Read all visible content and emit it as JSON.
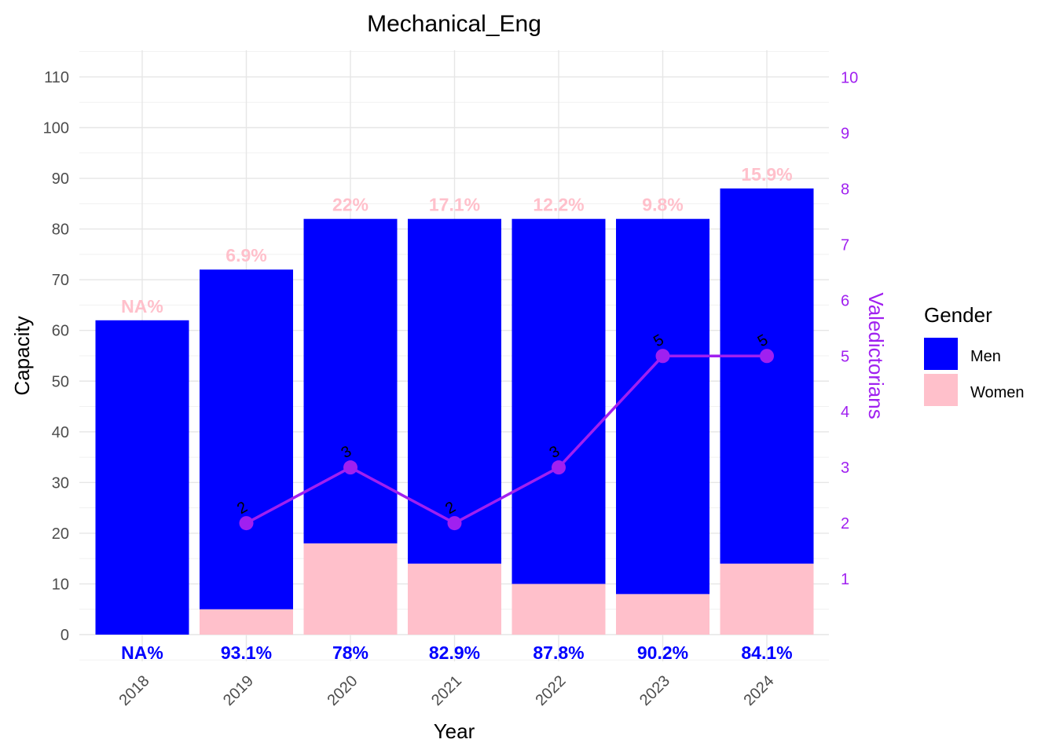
{
  "chart_data": {
    "type": "bar",
    "title": "Mechanical_Eng",
    "xlabel": "Year",
    "ylabel": "Capacity",
    "y2label": "Valedictorians",
    "categories": [
      "2018",
      "2019",
      "2020",
      "2021",
      "2022",
      "2023",
      "2024"
    ],
    "series": [
      {
        "name": "Women",
        "values": [
          0,
          5,
          18,
          14,
          10,
          8,
          14
        ],
        "color": "#ffc0cb"
      },
      {
        "name": "Men",
        "values": [
          62,
          67,
          64,
          68,
          72,
          74,
          74
        ],
        "color": "#0000ff"
      }
    ],
    "totals": [
      62,
      72,
      82,
      82,
      82,
      82,
      88
    ],
    "women_pct_labels": [
      "NA%",
      "6.9%",
      "22%",
      "17.1%",
      "12.2%",
      "9.8%",
      "15.9%"
    ],
    "men_pct_labels": [
      "NA%",
      "93.1%",
      "78%",
      "82.9%",
      "87.8%",
      "90.2%",
      "84.1%"
    ],
    "valedictorians": {
      "color": "#a020f0",
      "x": [
        "2019",
        "2020",
        "2021",
        "2022",
        "2023",
        "2024"
      ],
      "values": [
        2,
        3,
        2,
        3,
        5,
        5
      ],
      "labels": [
        "2",
        "3",
        "2",
        "3",
        "5",
        "5"
      ]
    },
    "ylim": [
      0,
      115
    ],
    "y_ticks": [
      "0",
      "10",
      "20",
      "30",
      "40",
      "50",
      "60",
      "70",
      "80",
      "90",
      "100",
      "110"
    ],
    "y2lim": [
      0,
      10.5
    ],
    "y2_ticks": [
      "1",
      "2",
      "3",
      "4",
      "5",
      "6",
      "7",
      "8",
      "9",
      "10"
    ],
    "legend": {
      "title": "Gender",
      "position": "right",
      "items": [
        {
          "label": "Men",
          "color": "#0000ff"
        },
        {
          "label": "Women",
          "color": "#ffc0cb"
        }
      ]
    },
    "grid": true
  }
}
